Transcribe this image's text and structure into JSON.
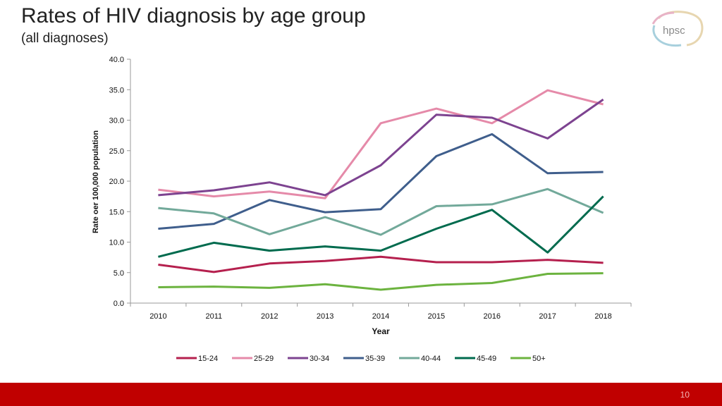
{
  "slide": {
    "title": "Rates of HIV diagnosis by age group",
    "subtitle": "(all diagnoses)",
    "logo_text": "hpsc",
    "page_number": "10",
    "footer_color": "#c00000"
  },
  "chart_data": {
    "type": "line",
    "title": "",
    "xlabel": "Year",
    "ylabel": "Rate oer 100,000 population",
    "ylim": [
      0,
      40
    ],
    "yticks": [
      "0.0",
      "5.0",
      "10.0",
      "15.0",
      "20.0",
      "25.0",
      "30.0",
      "35.0",
      "40.0"
    ],
    "categories": [
      "2010",
      "2011",
      "2012",
      "2013",
      "2014",
      "2015",
      "2016",
      "2017",
      "2018"
    ],
    "grid": false,
    "legend_position": "bottom",
    "series": [
      {
        "name": "15-24",
        "color": "#b5204e",
        "values": [
          6.3,
          5.1,
          6.5,
          6.9,
          7.6,
          6.7,
          6.7,
          7.1,
          6.6
        ]
      },
      {
        "name": "25-29",
        "color": "#e58aa9",
        "values": [
          18.6,
          17.5,
          18.3,
          17.2,
          29.5,
          31.9,
          29.5,
          34.9,
          32.6
        ]
      },
      {
        "name": "30-34",
        "color": "#7d4390",
        "values": [
          17.7,
          18.5,
          19.8,
          17.7,
          22.6,
          30.9,
          30.4,
          27.0,
          33.4
        ]
      },
      {
        "name": "35-39",
        "color": "#3f5e8c",
        "values": [
          12.2,
          13.0,
          16.9,
          14.9,
          15.4,
          24.1,
          27.7,
          21.3,
          21.5
        ]
      },
      {
        "name": "40-44",
        "color": "#72a99a",
        "values": [
          15.6,
          14.7,
          11.3,
          14.1,
          11.2,
          15.9,
          16.2,
          18.7,
          14.8
        ]
      },
      {
        "name": "45-49",
        "color": "#006b4e",
        "values": [
          7.6,
          9.9,
          8.6,
          9.3,
          8.6,
          12.2,
          15.3,
          8.3,
          17.5
        ]
      },
      {
        "name": "50+",
        "color": "#6cb33f",
        "values": [
          2.6,
          2.7,
          2.5,
          3.1,
          2.2,
          3.0,
          3.3,
          4.8,
          4.9
        ]
      }
    ]
  }
}
